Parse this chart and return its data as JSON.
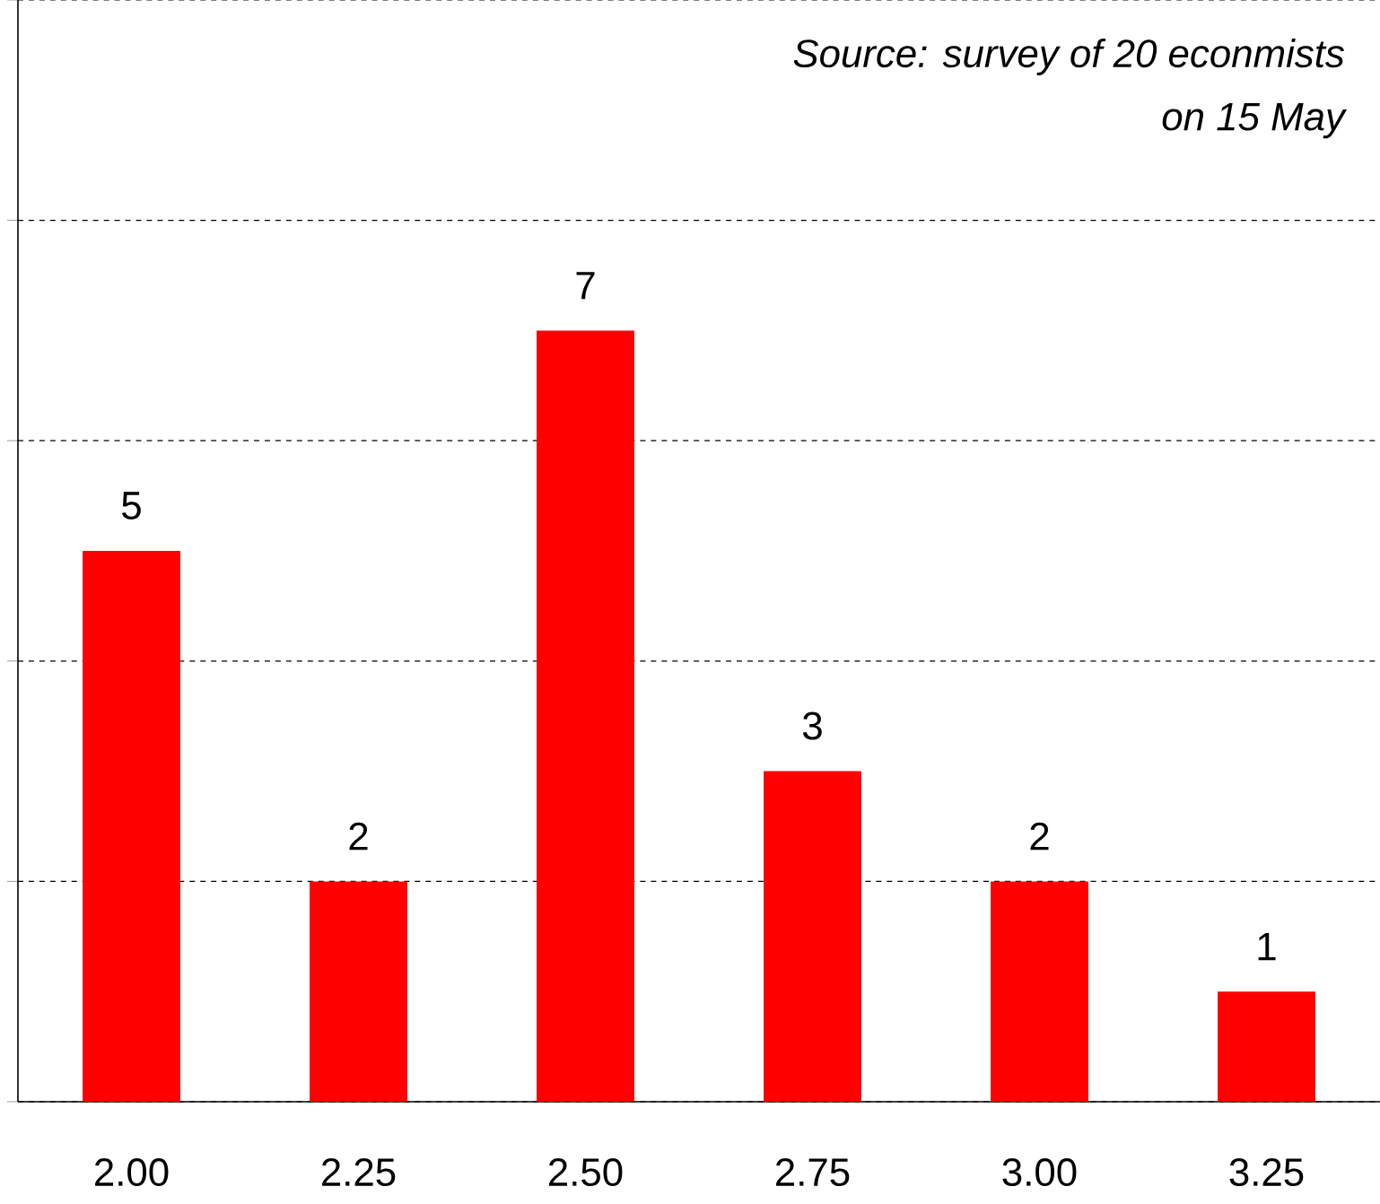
{
  "chart_data": {
    "type": "bar",
    "categories": [
      "2.00",
      "2.25",
      "2.50",
      "2.75",
      "3.00",
      "3.25"
    ],
    "values": [
      5,
      2,
      7,
      3,
      2,
      1
    ],
    "color": "#ff0000",
    "data_labels": true,
    "ylim": [
      0,
      10
    ],
    "yticks": [
      {
        "value": 0,
        "label": null
      },
      {
        "value": 2,
        "label": null
      },
      {
        "value": 4,
        "label": null
      },
      {
        "value": 6,
        "label": null
      },
      {
        "value": 8,
        "label": null
      },
      {
        "value": 10,
        "label": null
      }
    ],
    "grid": "y",
    "tick_labels": "x",
    "annotations": [
      "Source: survey of 20 econmists",
      "on 15 May"
    ]
  }
}
